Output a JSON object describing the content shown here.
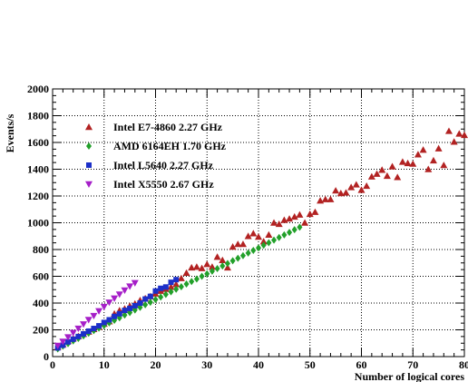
{
  "chart_data": {
    "type": "scatter",
    "xlabel": "Number of logical cores",
    "ylabel": "Events/s",
    "xlim": [
      0,
      80
    ],
    "ylim": [
      0,
      2000
    ],
    "x_ticks": [
      "0",
      "10",
      "20",
      "30",
      "40",
      "50",
      "60",
      "70",
      "80"
    ],
    "y_ticks": [
      "0",
      "200",
      "400",
      "600",
      "800",
      "1000",
      "1200",
      "1400",
      "1600",
      "1800",
      "2000"
    ],
    "grid": true,
    "legend_position": "top-left",
    "series": [
      {
        "name": "Intel E7-4860 2.27 GHz",
        "marker": "triangle-up",
        "color": "#b22222",
        "points": [
          [
            1,
            72
          ],
          [
            2,
            92
          ],
          [
            3,
            115
          ],
          [
            4,
            135
          ],
          [
            5,
            152
          ],
          [
            6,
            168
          ],
          [
            7,
            185
          ],
          [
            8,
            205
          ],
          [
            9,
            222
          ],
          [
            10,
            245
          ],
          [
            11,
            262
          ],
          [
            12,
            320
          ],
          [
            13,
            345
          ],
          [
            14,
            358
          ],
          [
            15,
            378
          ],
          [
            16,
            395
          ],
          [
            17,
            420
          ],
          [
            18,
            435
          ],
          [
            19,
            450
          ],
          [
            20,
            470
          ],
          [
            21,
            490
          ],
          [
            22,
            505
          ],
          [
            23,
            520
          ],
          [
            24,
            540
          ],
          [
            25,
            585
          ],
          [
            26,
            625
          ],
          [
            27,
            665
          ],
          [
            28,
            670
          ],
          [
            29,
            660
          ],
          [
            30,
            690
          ],
          [
            31,
            670
          ],
          [
            32,
            745
          ],
          [
            33,
            720
          ],
          [
            34,
            665
          ],
          [
            35,
            820
          ],
          [
            36,
            840
          ],
          [
            37,
            840
          ],
          [
            38,
            900
          ],
          [
            39,
            920
          ],
          [
            40,
            895
          ],
          [
            41,
            860
          ],
          [
            42,
            910
          ],
          [
            43,
            1000
          ],
          [
            44,
            990
          ],
          [
            45,
            1020
          ],
          [
            46,
            1030
          ],
          [
            47,
            1045
          ],
          [
            48,
            1060
          ],
          [
            49,
            1000
          ],
          [
            50,
            1065
          ],
          [
            51,
            1080
          ],
          [
            52,
            1165
          ],
          [
            53,
            1175
          ],
          [
            54,
            1175
          ],
          [
            55,
            1240
          ],
          [
            56,
            1220
          ],
          [
            57,
            1225
          ],
          [
            58,
            1265
          ],
          [
            59,
            1285
          ],
          [
            60,
            1245
          ],
          [
            61,
            1275
          ],
          [
            62,
            1345
          ],
          [
            63,
            1365
          ],
          [
            64,
            1395
          ],
          [
            65,
            1350
          ],
          [
            66,
            1420
          ],
          [
            67,
            1340
          ],
          [
            68,
            1455
          ],
          [
            69,
            1445
          ],
          [
            70,
            1440
          ],
          [
            71,
            1510
          ],
          [
            72,
            1545
          ],
          [
            73,
            1400
          ],
          [
            74,
            1465
          ],
          [
            75,
            1555
          ],
          [
            76,
            1430
          ],
          [
            77,
            1685
          ],
          [
            78,
            1605
          ],
          [
            79,
            1665
          ],
          [
            80,
            1655
          ]
        ]
      },
      {
        "name": "AMD 6164EH  1.70 GHz",
        "marker": "diamond",
        "color": "#22a02a",
        "points": [
          [
            1,
            58
          ],
          [
            2,
            78
          ],
          [
            3,
            97
          ],
          [
            4,
            117
          ],
          [
            5,
            136
          ],
          [
            6,
            155
          ],
          [
            7,
            175
          ],
          [
            8,
            194
          ],
          [
            9,
            213
          ],
          [
            10,
            232
          ],
          [
            11,
            252
          ],
          [
            12,
            271
          ],
          [
            13,
            290
          ],
          [
            14,
            310
          ],
          [
            15,
            329
          ],
          [
            16,
            348
          ],
          [
            17,
            368
          ],
          [
            18,
            387
          ],
          [
            19,
            406
          ],
          [
            20,
            426
          ],
          [
            21,
            445
          ],
          [
            22,
            464
          ],
          [
            23,
            484
          ],
          [
            24,
            503
          ],
          [
            25,
            522
          ],
          [
            26,
            542
          ],
          [
            27,
            561
          ],
          [
            28,
            580
          ],
          [
            29,
            600
          ],
          [
            30,
            619
          ],
          [
            31,
            638
          ],
          [
            32,
            658
          ],
          [
            33,
            677
          ],
          [
            34,
            696
          ],
          [
            35,
            716
          ],
          [
            36,
            735
          ],
          [
            37,
            754
          ],
          [
            38,
            774
          ],
          [
            39,
            793
          ],
          [
            40,
            812
          ],
          [
            41,
            832
          ],
          [
            42,
            851
          ],
          [
            43,
            870
          ],
          [
            44,
            890
          ],
          [
            45,
            909
          ],
          [
            46,
            928
          ],
          [
            47,
            948
          ],
          [
            48,
            967
          ]
        ]
      },
      {
        "name": "Intel L5640   2.27 GHz",
        "marker": "square",
        "color": "#1c2fc8",
        "points": [
          [
            1,
            65
          ],
          [
            2,
            85
          ],
          [
            3,
            110
          ],
          [
            4,
            130
          ],
          [
            5,
            150
          ],
          [
            6,
            170
          ],
          [
            7,
            190
          ],
          [
            8,
            210
          ],
          [
            9,
            230
          ],
          [
            10,
            255
          ],
          [
            11,
            275
          ],
          [
            12,
            300
          ],
          [
            13,
            320
          ],
          [
            14,
            345
          ],
          [
            15,
            360
          ],
          [
            16,
            380
          ],
          [
            17,
            400
          ],
          [
            18,
            430
          ],
          [
            19,
            450
          ],
          [
            20,
            490
          ],
          [
            21,
            510
          ],
          [
            22,
            520
          ],
          [
            23,
            555
          ],
          [
            24,
            575
          ]
        ]
      },
      {
        "name": "Intel X5550   2.67 GHz",
        "marker": "triangle-down",
        "color": "#a61fc8",
        "points": [
          [
            1,
            82
          ],
          [
            2,
            112
          ],
          [
            3,
            145
          ],
          [
            4,
            178
          ],
          [
            5,
            210
          ],
          [
            6,
            242
          ],
          [
            7,
            275
          ],
          [
            8,
            305
          ],
          [
            9,
            340
          ],
          [
            10,
            372
          ],
          [
            11,
            405
          ],
          [
            12,
            435
          ],
          [
            13,
            465
          ],
          [
            14,
            495
          ],
          [
            15,
            525
          ],
          [
            16,
            550
          ]
        ]
      }
    ]
  }
}
